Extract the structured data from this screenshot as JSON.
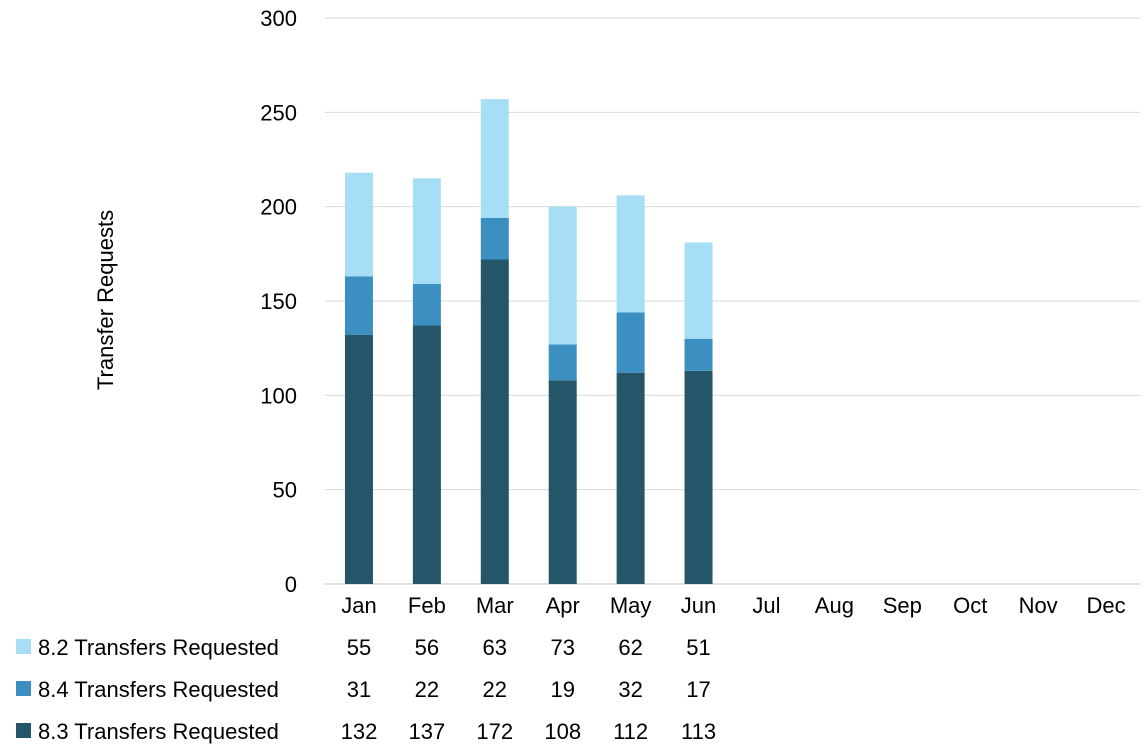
{
  "chart_data": {
    "type": "bar",
    "stacked": true,
    "ylabel": "Transfer Requests",
    "ylim": [
      0,
      300
    ],
    "yticks": [
      "0",
      "50",
      "100",
      "150",
      "200",
      "250",
      "300"
    ],
    "grid": true,
    "categories": [
      "Jan",
      "Feb",
      "Mar",
      "Apr",
      "May",
      "Jun",
      "Jul",
      "Aug",
      "Sep",
      "Oct",
      "Nov",
      "Dec"
    ],
    "series": [
      {
        "name": "8.3 Transfers Requested",
        "color": "#245569",
        "values": [
          132,
          137,
          172,
          108,
          112,
          113,
          null,
          null,
          null,
          null,
          null,
          null
        ]
      },
      {
        "name": "8.4 Transfers Requested",
        "color": "#3b8fc1",
        "values": [
          31,
          22,
          22,
          19,
          32,
          17,
          null,
          null,
          null,
          null,
          null,
          null
        ]
      },
      {
        "name": "8.2 Transfers Requested",
        "color": "#a6def5",
        "values": [
          55,
          56,
          63,
          73,
          62,
          51,
          null,
          null,
          null,
          null,
          null,
          null
        ]
      }
    ],
    "table_row_order": [
      "8.2 Transfers Requested",
      "8.4 Transfers Requested",
      "8.3 Transfers Requested"
    ],
    "legend": "data-table-left"
  }
}
